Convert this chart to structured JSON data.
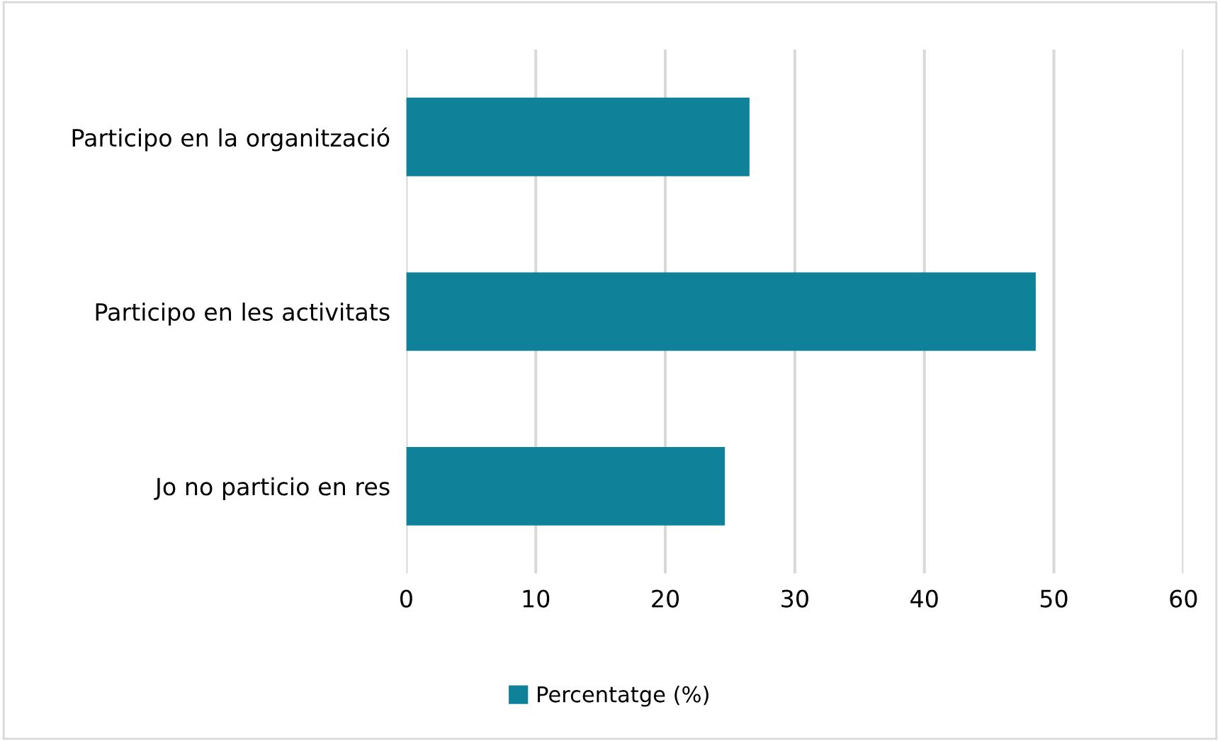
{
  "chart_data": {
    "type": "bar",
    "orientation": "horizontal",
    "categories": [
      "Participo en la organització",
      "Participo en les activitats",
      "Jo no particio en res"
    ],
    "series": [
      {
        "name": "Percentatge (%)",
        "color": "#0f8299",
        "values": [
          26.5,
          48.6,
          24.6
        ]
      }
    ],
    "xlim": [
      0,
      60
    ],
    "xticks": [
      0,
      10,
      20,
      30,
      40,
      50,
      60
    ],
    "grid": "x",
    "legend": "bottom"
  }
}
